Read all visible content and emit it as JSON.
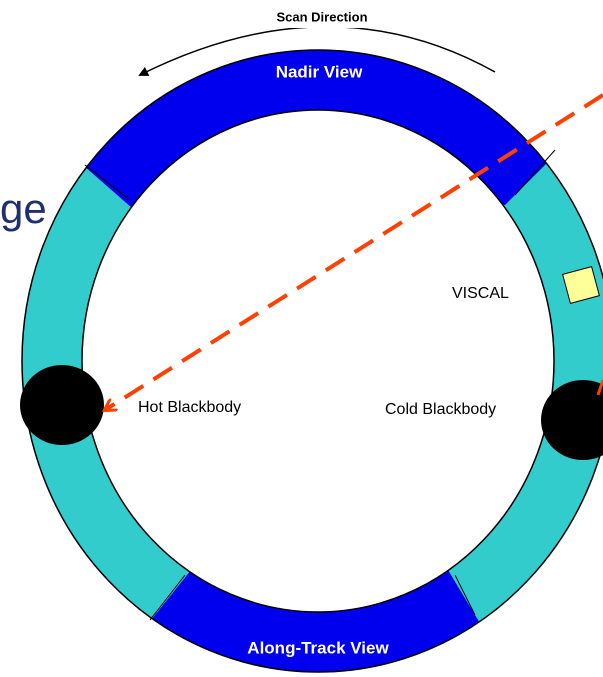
{
  "labels": {
    "scan_direction": "Scan Direction",
    "nadir_view": "Nadir View",
    "along_track_view": "Along-Track View",
    "hot_blackbody": "Hot Blackbody",
    "cold_blackbody": "Cold Blackbody",
    "viscal": "VISCAL",
    "partial_text": "ge"
  }
}
